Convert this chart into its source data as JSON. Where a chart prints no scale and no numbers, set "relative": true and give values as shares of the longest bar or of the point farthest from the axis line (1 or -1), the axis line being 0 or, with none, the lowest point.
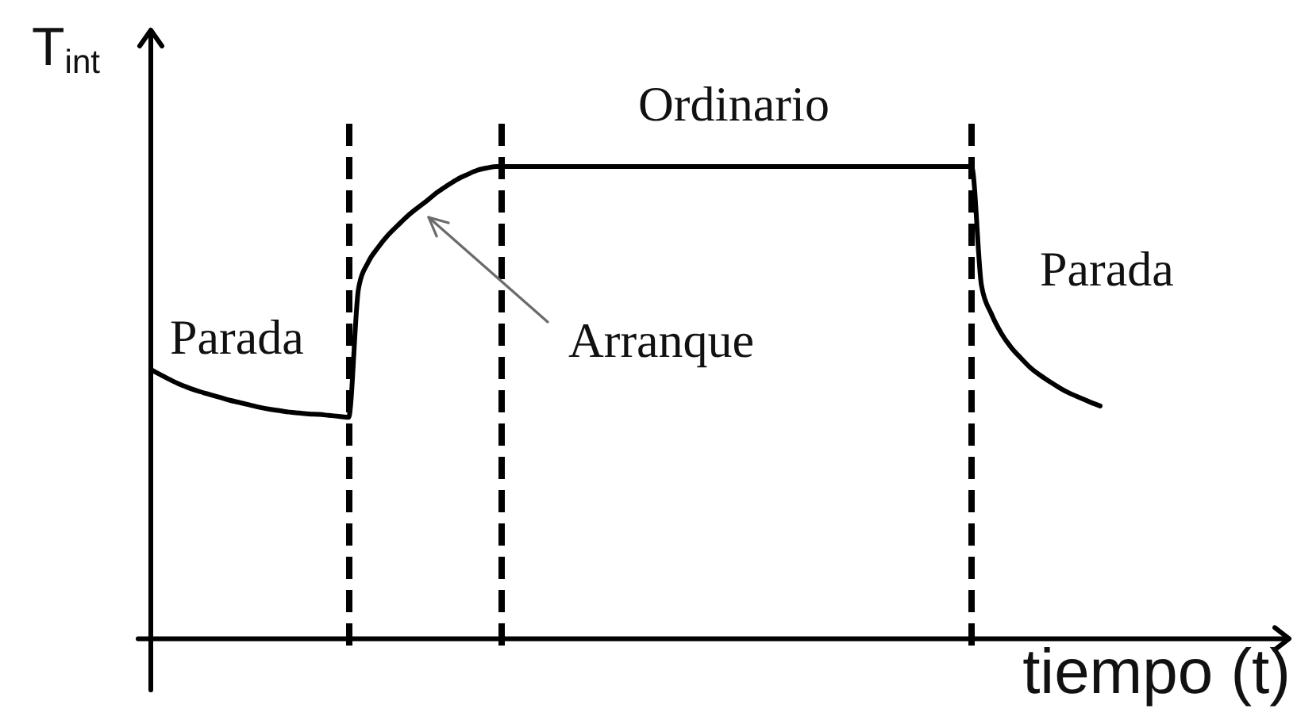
{
  "chart_data": {
    "type": "line",
    "relative": true,
    "xlabel": "tiempo (t)",
    "ylabel": "T$_{int}$",
    "categories": [
      null,
      null,
      null,
      null,
      null,
      null,
      null,
      null,
      null,
      null,
      null,
      null,
      null,
      null,
      null,
      null,
      null,
      null,
      null,
      null,
      null,
      null,
      null,
      null,
      null,
      null,
      null,
      null,
      null,
      null,
      null,
      null,
      null,
      null,
      null,
      null,
      null,
      null,
      null,
      null,
      null,
      null,
      null,
      null,
      null,
      null,
      null,
      null,
      null,
      null,
      null,
      null,
      null,
      null,
      null,
      null,
      null,
      null,
      null,
      null,
      null,
      null,
      null,
      null,
      null,
      null,
      null,
      null,
      null,
      null,
      null,
      null,
      null,
      null,
      null,
      null,
      null,
      null,
      null,
      null,
      null,
      null,
      null,
      null,
      null,
      null,
      null,
      null,
      null,
      null,
      null,
      null,
      null,
      null,
      null,
      null,
      null
    ],
    "series": [
      {
        "color": "#000000",
        "values": [
          0.57,
          0.559,
          0.548,
          0.538,
          0.53,
          0.523,
          0.517,
          0.511,
          0.505,
          0.5,
          0.495,
          0.49,
          0.486,
          0.483,
          0.48,
          0.478,
          0.476,
          0.475,
          0.473,
          0.471,
          0.469,
          0.741,
          0.798,
          0.829,
          0.855,
          0.876,
          0.896,
          0.913,
          0.929,
          0.946,
          0.96,
          0.973,
          0.983,
          0.992,
          0.997,
          1,
          1,
          1,
          1,
          1,
          1,
          1,
          1,
          1,
          1,
          1,
          1,
          1,
          1,
          1,
          1,
          1,
          1,
          1,
          1,
          1,
          1,
          1,
          1,
          1,
          1,
          1,
          1,
          1,
          1,
          1,
          1,
          1,
          1,
          1,
          1,
          1,
          1,
          1,
          1,
          1,
          1,
          1,
          1,
          1,
          1,
          1,
          1,
          1,
          0.748,
          0.688,
          0.647,
          0.617,
          0.594,
          0.573,
          0.557,
          0.543,
          0.53,
          0.519,
          0.51,
          0.501,
          0.493
        ]
      }
    ],
    "annotations": [
      "Parada",
      "Ordinario",
      "Parada",
      "Arranque"
    ]
  }
}
